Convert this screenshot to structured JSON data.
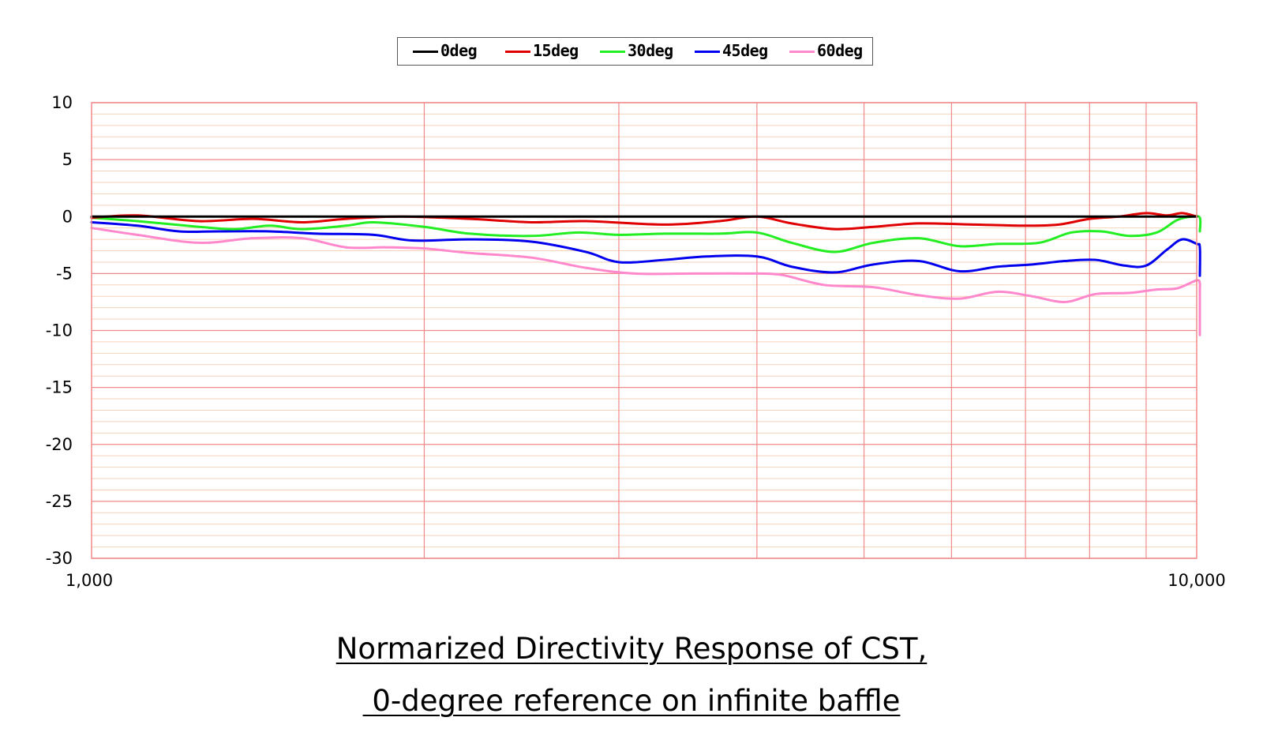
{
  "chart_data": {
    "type": "line",
    "title": "Normarized Directivity Response of CST,",
    "subtitle": " 0-degree reference on infinite baffle",
    "xlabel": "",
    "ylabel": "",
    "xscale": "log",
    "xlim": [
      1000,
      10000
    ],
    "ylim": [
      -30,
      10
    ],
    "x_tick_labels": [
      "1,000",
      "10,000"
    ],
    "y_ticks": [
      10,
      5,
      0,
      -5,
      -10,
      -15,
      -20,
      -25,
      -30
    ],
    "grid": true,
    "legend_position": "top-center",
    "series": [
      {
        "name": "0deg",
        "color": "#000000",
        "points": [
          [
            1000,
            0
          ],
          [
            10000,
            0
          ]
        ]
      },
      {
        "name": "15deg",
        "color": "#e00000",
        "points": [
          [
            1000,
            -0.1
          ],
          [
            1100,
            0.1
          ],
          [
            1250,
            -0.4
          ],
          [
            1400,
            -0.2
          ],
          [
            1550,
            -0.5
          ],
          [
            1700,
            -0.2
          ],
          [
            1900,
            0.0
          ],
          [
            2200,
            -0.2
          ],
          [
            2500,
            -0.5
          ],
          [
            2800,
            -0.4
          ],
          [
            3300,
            -0.7
          ],
          [
            3700,
            -0.4
          ],
          [
            4000,
            0.0
          ],
          [
            4300,
            -0.6
          ],
          [
            4700,
            -1.1
          ],
          [
            5100,
            -0.9
          ],
          [
            5600,
            -0.6
          ],
          [
            6300,
            -0.7
          ],
          [
            7000,
            -0.8
          ],
          [
            7500,
            -0.7
          ],
          [
            8000,
            -0.2
          ],
          [
            8500,
            0.0
          ],
          [
            9000,
            0.3
          ],
          [
            9400,
            0.1
          ],
          [
            9700,
            0.3
          ],
          [
            10000,
            0.0
          ]
        ]
      },
      {
        "name": "30deg",
        "color": "#22ee22",
        "points": [
          [
            1000,
            -0.1
          ],
          [
            1100,
            -0.4
          ],
          [
            1250,
            -0.9
          ],
          [
            1350,
            -1.1
          ],
          [
            1450,
            -0.8
          ],
          [
            1550,
            -1.1
          ],
          [
            1700,
            -0.8
          ],
          [
            1800,
            -0.5
          ],
          [
            2000,
            -0.9
          ],
          [
            2200,
            -1.5
          ],
          [
            2500,
            -1.7
          ],
          [
            2750,
            -1.4
          ],
          [
            3000,
            -1.6
          ],
          [
            3300,
            -1.5
          ],
          [
            3700,
            -1.5
          ],
          [
            4000,
            -1.4
          ],
          [
            4300,
            -2.3
          ],
          [
            4700,
            -3.1
          ],
          [
            5100,
            -2.3
          ],
          [
            5600,
            -1.9
          ],
          [
            6100,
            -2.6
          ],
          [
            6600,
            -2.4
          ],
          [
            7200,
            -2.3
          ],
          [
            7700,
            -1.4
          ],
          [
            8200,
            -1.3
          ],
          [
            8700,
            -1.7
          ],
          [
            9200,
            -1.4
          ],
          [
            9600,
            -0.3
          ],
          [
            9900,
            0.0
          ],
          [
            10200,
            -0.1
          ],
          [
            10600,
            -1.3
          ]
        ]
      },
      {
        "name": "45deg",
        "color": "#0000ee",
        "points": [
          [
            1000,
            -0.5
          ],
          [
            1100,
            -0.8
          ],
          [
            1200,
            -1.3
          ],
          [
            1300,
            -1.3
          ],
          [
            1450,
            -1.3
          ],
          [
            1600,
            -1.5
          ],
          [
            1800,
            -1.6
          ],
          [
            1950,
            -2.1
          ],
          [
            2200,
            -2.0
          ],
          [
            2500,
            -2.2
          ],
          [
            2800,
            -3.1
          ],
          [
            3000,
            -4.0
          ],
          [
            3300,
            -3.8
          ],
          [
            3600,
            -3.5
          ],
          [
            4000,
            -3.5
          ],
          [
            4300,
            -4.4
          ],
          [
            4700,
            -4.9
          ],
          [
            5100,
            -4.2
          ],
          [
            5600,
            -3.9
          ],
          [
            6100,
            -4.8
          ],
          [
            6600,
            -4.4
          ],
          [
            7100,
            -4.2
          ],
          [
            7600,
            -3.9
          ],
          [
            8100,
            -3.8
          ],
          [
            8600,
            -4.3
          ],
          [
            9000,
            -4.3
          ],
          [
            9400,
            -2.9
          ],
          [
            9700,
            -2.0
          ],
          [
            10000,
            -2.4
          ],
          [
            10300,
            -2.7
          ],
          [
            10600,
            -5.2
          ]
        ]
      },
      {
        "name": "60deg",
        "color": "#ff88cc",
        "points": [
          [
            1000,
            -1.0
          ],
          [
            1100,
            -1.6
          ],
          [
            1250,
            -2.3
          ],
          [
            1400,
            -1.9
          ],
          [
            1550,
            -1.9
          ],
          [
            1700,
            -2.7
          ],
          [
            1850,
            -2.7
          ],
          [
            2000,
            -2.8
          ],
          [
            2200,
            -3.2
          ],
          [
            2500,
            -3.6
          ],
          [
            2800,
            -4.5
          ],
          [
            3100,
            -5.0
          ],
          [
            3500,
            -5.0
          ],
          [
            3900,
            -5.0
          ],
          [
            4200,
            -5.1
          ],
          [
            4600,
            -6.0
          ],
          [
            5100,
            -6.2
          ],
          [
            5600,
            -6.9
          ],
          [
            6100,
            -7.2
          ],
          [
            6600,
            -6.6
          ],
          [
            7100,
            -7.0
          ],
          [
            7600,
            -7.5
          ],
          [
            8100,
            -6.8
          ],
          [
            8700,
            -6.7
          ],
          [
            9200,
            -6.4
          ],
          [
            9600,
            -6.3
          ],
          [
            10000,
            -5.6
          ],
          [
            10300,
            -5.9
          ],
          [
            10500,
            -6.5
          ],
          [
            10800,
            -10.4
          ]
        ]
      }
    ]
  }
}
